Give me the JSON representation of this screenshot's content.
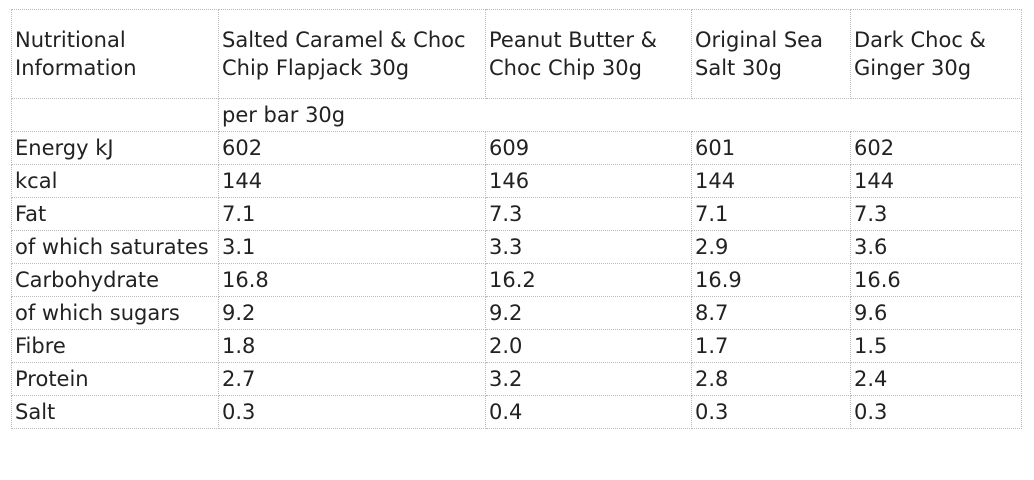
{
  "table": {
    "header": [
      "Nutritional Information",
      "Salted Caramel & Choc Chip Flapjack 30g",
      "Peanut Butter & Choc Chip 30g",
      "Original Sea Salt 30g",
      "Dark Choc & Ginger 30g"
    ],
    "subheader": "per bar 30g",
    "rows": [
      [
        "Energy kJ",
        "602",
        "609",
        "601",
        "602"
      ],
      [
        "kcal",
        "144",
        "146",
        "144",
        "144"
      ],
      [
        "Fat",
        "7.1",
        "7.3",
        "7.1",
        "7.3"
      ],
      [
        "of which saturates",
        "3.1",
        "3.3",
        "2.9",
        "3.6"
      ],
      [
        "Carbohydrate",
        "16.8",
        "16.2",
        "16.9",
        "16.6"
      ],
      [
        "of which sugars",
        "9.2",
        "9.2",
        "8.7",
        "9.6"
      ],
      [
        "Fibre",
        "1.8",
        "2.0",
        "1.7",
        "1.5"
      ],
      [
        "Protein",
        "2.7",
        "3.2",
        "2.8",
        "2.4"
      ],
      [
        "Salt",
        "0.3",
        "0.4",
        "0.3",
        "0.3"
      ]
    ]
  }
}
